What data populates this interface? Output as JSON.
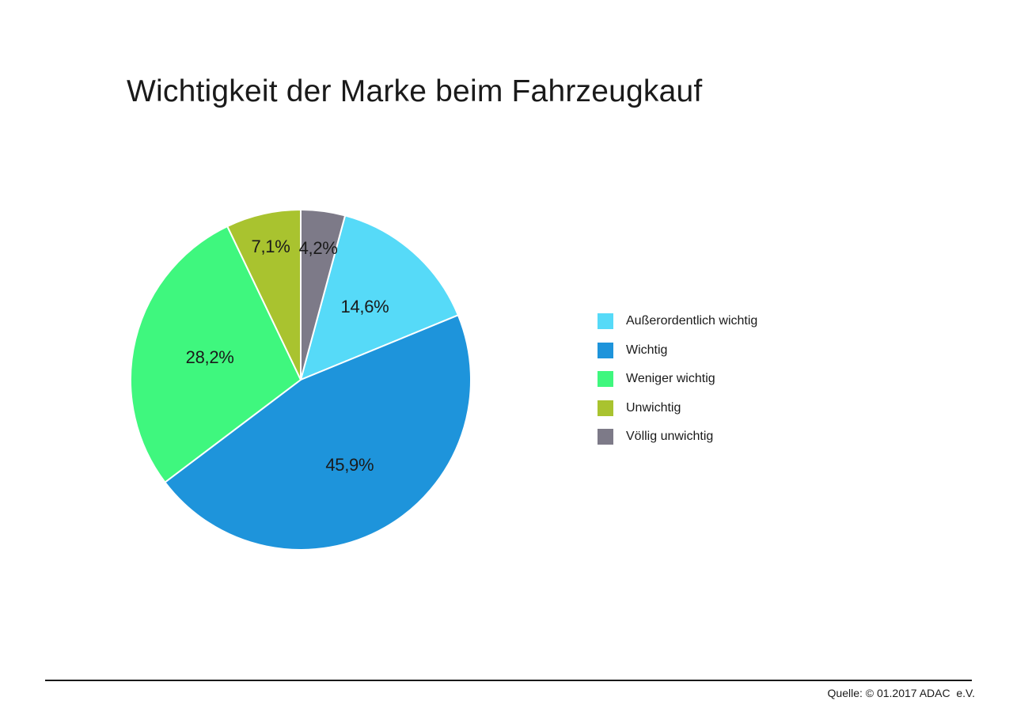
{
  "page": {
    "title": "Wichtigkeit der Marke beim Fahrzeugkauf",
    "source": "Quelle: © 01.2017 ADAC  e.V."
  },
  "chart_data": {
    "type": "pie",
    "title": "Wichtigkeit der Marke beim Fahrzeugkauf",
    "unit": "%",
    "direction": "clockwise",
    "start_angle_deg": 15.12,
    "slice_border_color": "#ffffff",
    "legend_position": "right",
    "slices": [
      {
        "label": "Außerordentlich wichtig",
        "value": 14.6,
        "display": "14,6%",
        "color": "#56daf8",
        "label_r_frac": 0.57
      },
      {
        "label": "Wichtig",
        "value": 45.9,
        "display": "45,9%",
        "color": "#1e94db",
        "label_r_frac": 0.58
      },
      {
        "label": "Weniger wichtig",
        "value": 28.2,
        "display": "28,2%",
        "color": "#3ff77e",
        "label_r_frac": 0.55
      },
      {
        "label": "Unwichtig",
        "value": 7.1,
        "display": "7,1%",
        "color": "#a9c32f",
        "label_r_frac": 0.8
      },
      {
        "label": "Völlig unwichtig",
        "value": 4.2,
        "display": "4,2%",
        "color": "#7d7a88",
        "label_r_frac": 0.78
      }
    ]
  }
}
